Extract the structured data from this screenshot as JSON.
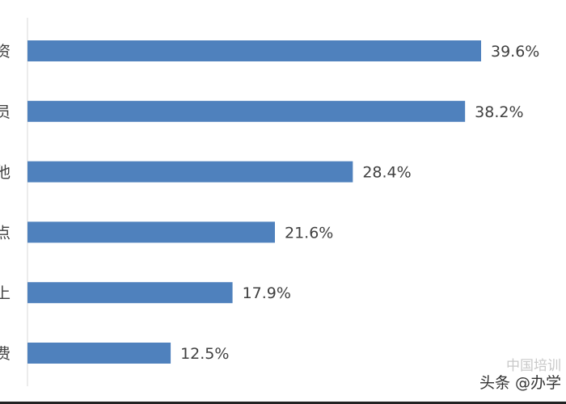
{
  "chart_data": {
    "type": "bar",
    "orientation": "horizontal",
    "categories": [
      "资",
      "员",
      "他",
      "点",
      "上",
      "费"
    ],
    "values": [
      39.6,
      38.2,
      28.4,
      21.6,
      17.9,
      12.5
    ],
    "value_labels": [
      "39.6%",
      "38.2%",
      "28.4%",
      "21.6%",
      "17.9%",
      "12.5%"
    ],
    "title": "",
    "xlabel": "",
    "ylabel": "",
    "xlim": [
      0,
      40
    ],
    "grid": false,
    "bar_color": "#4f81bd",
    "axis_color": "#d9d9d9"
  },
  "watermark": {
    "line1": "中国培训",
    "line2": "头条 @办学"
  }
}
